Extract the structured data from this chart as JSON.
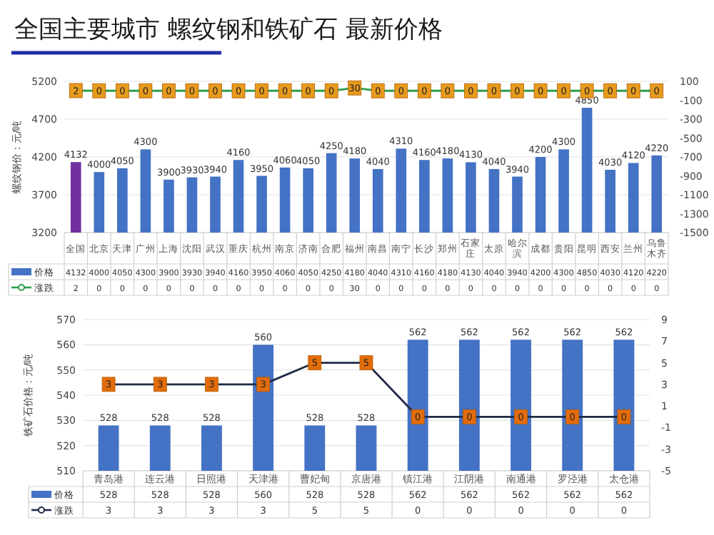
{
  "chart_data": [
    {
      "type": "bar",
      "title": "全国主要城市 螺纹钢和铁矿石 最新价格",
      "ylabel": "螺纹钢价：元/吨",
      "categories": [
        "全国",
        "北京",
        "天津",
        "广州",
        "上海",
        "沈阳",
        "武汉",
        "重庆",
        "杭州",
        "南京",
        "济南",
        "合肥",
        "福州",
        "南昌",
        "南宁",
        "长沙",
        "郑州",
        "石家庄",
        "太原",
        "哈尔滨",
        "成都",
        "贵阳",
        "昆明",
        "西安",
        "兰州",
        "乌鲁木齐"
      ],
      "series": [
        {
          "name": "价格",
          "colors": [
            "#7030a0",
            "#4472c4",
            "#4472c4",
            "#4472c4",
            "#4472c4",
            "#4472c4",
            "#4472c4",
            "#4472c4",
            "#4472c4",
            "#4472c4",
            "#4472c4",
            "#4472c4",
            "#4472c4",
            "#4472c4",
            "#4472c4",
            "#4472c4",
            "#4472c4",
            "#4472c4",
            "#4472c4",
            "#4472c4",
            "#4472c4",
            "#4472c4",
            "#4472c4",
            "#4472c4",
            "#4472c4",
            "#4472c4"
          ],
          "values": [
            4132,
            4000,
            4050,
            4300,
            3900,
            3930,
            3940,
            4160,
            3950,
            4060,
            4050,
            4250,
            4180,
            4040,
            4310,
            4160,
            4180,
            4130,
            4040,
            3940,
            4200,
            4300,
            4850,
            4030,
            4120,
            4220
          ],
          "value_labels": [
            "4132",
            "4000",
            "4050",
            "4300",
            "3900",
            "3930",
            "3940",
            "4160",
            "3950",
            "4060",
            "4050",
            "4250",
            "4180",
            "4040",
            "4310",
            "4160",
            "4180",
            "4130",
            "4040",
            "3940",
            "4200",
            "4300",
            "4850",
            "4030",
            "4120",
            "4220"
          ]
        },
        {
          "name": "涨跌",
          "type": "line",
          "axis": "y2",
          "color": "#2e9e4a",
          "values": [
            2,
            0,
            0,
            0,
            0,
            0,
            0,
            0,
            0,
            0,
            0,
            0,
            30,
            0,
            0,
            0,
            0,
            0,
            0,
            0,
            0,
            0,
            0,
            0,
            0,
            0
          ],
          "value_labels": [
            "2",
            "0",
            "0",
            "0",
            "0",
            "0",
            "0",
            "0",
            "0",
            "0",
            "0",
            "0",
            "30",
            "0",
            "0",
            "0",
            "0",
            "0",
            "0",
            "0",
            "0",
            "0",
            "0",
            "0",
            "0",
            "0"
          ]
        }
      ],
      "ylim": [
        3200,
        5200
      ],
      "yticks": [
        3200,
        3700,
        4200,
        4700,
        5200
      ],
      "y2lim": [
        -1500,
        100
      ],
      "y2ticks": [
        -1500,
        -1300,
        -1100,
        -900,
        -700,
        -500,
        -300,
        -100,
        100
      ],
      "grid": "y",
      "legend": "bottom",
      "marker": "square",
      "data_labels": true
    },
    {
      "type": "bar",
      "ylabel": "铁矿石价格：元/吨",
      "categories": [
        "青岛港",
        "连云港",
        "日照港",
        "天津港",
        "曹妃甸",
        "京唐港",
        "镇江港",
        "江阴港",
        "南通港",
        "罗泾港",
        "太仓港"
      ],
      "series": [
        {
          "name": "价格",
          "color": "#4472c4",
          "values": [
            528,
            528,
            528,
            560,
            528,
            528,
            562,
            562,
            562,
            562,
            562
          ],
          "value_labels": [
            "528",
            "528",
            "528",
            "560",
            "528",
            "528",
            "562",
            "562",
            "562",
            "562",
            "562"
          ]
        },
        {
          "name": "涨跌",
          "type": "line",
          "axis": "y2",
          "color": "#1f2a44",
          "values": [
            3,
            3,
            3,
            3,
            5,
            5,
            0,
            0,
            0,
            0,
            0
          ],
          "value_labels": [
            "3",
            "3",
            "3",
            "3",
            "5",
            "5",
            "0",
            "0",
            "0",
            "0",
            "0"
          ]
        }
      ],
      "ylim": [
        510,
        570
      ],
      "yticks": [
        510,
        520,
        530,
        540,
        550,
        560,
        570
      ],
      "y2lim": [
        -5,
        9
      ],
      "y2ticks": [
        -5,
        -3,
        -1,
        1,
        3,
        5,
        7,
        9
      ],
      "grid": "y",
      "legend": "bottom",
      "marker": "square",
      "data_labels": true
    }
  ]
}
